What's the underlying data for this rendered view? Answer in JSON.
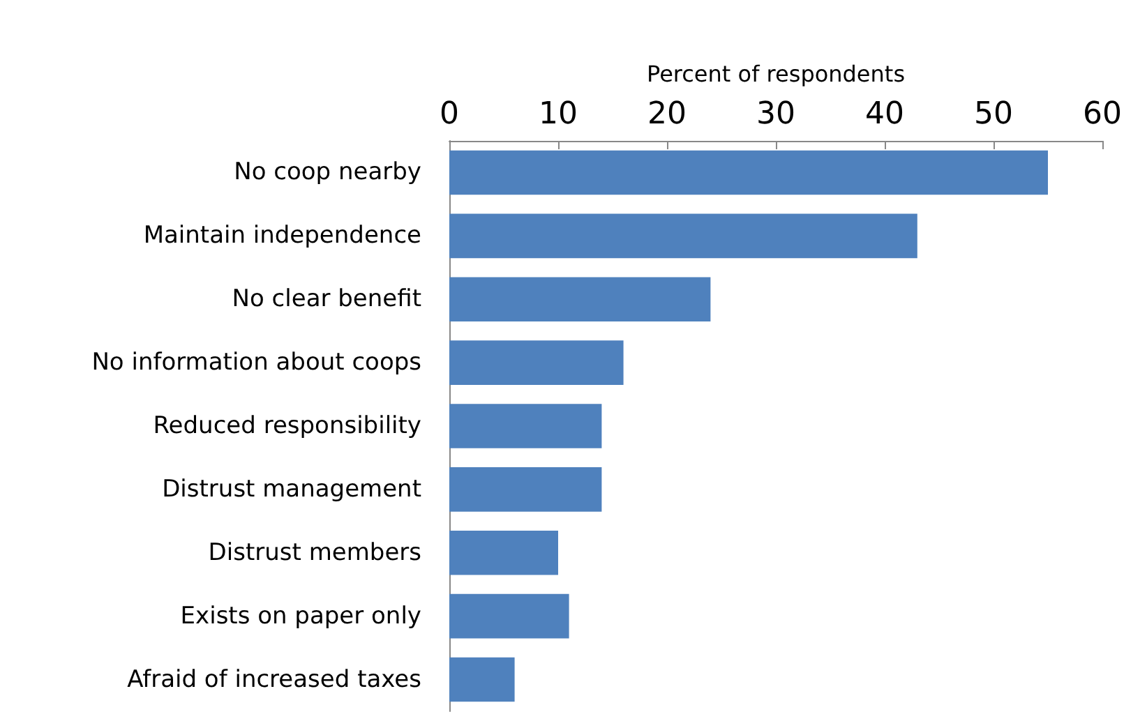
{
  "chart_data": {
    "type": "bar",
    "orientation": "horizontal",
    "xlabel": "Percent of respondents",
    "categories": [
      "No coop nearby",
      "Maintain independence",
      "No clear benefit",
      "No information about coops",
      "Reduced responsibility",
      "Distrust management",
      "Distrust members",
      "Exists on paper only",
      "Afraid of increased taxes"
    ],
    "values": [
      55,
      43,
      24,
      16,
      14,
      14,
      10,
      11,
      6
    ],
    "color": "#4f81bd",
    "xlim": [
      0,
      60
    ],
    "xticks": [
      0,
      10,
      20,
      30,
      40,
      50,
      60
    ],
    "grid": false
  }
}
